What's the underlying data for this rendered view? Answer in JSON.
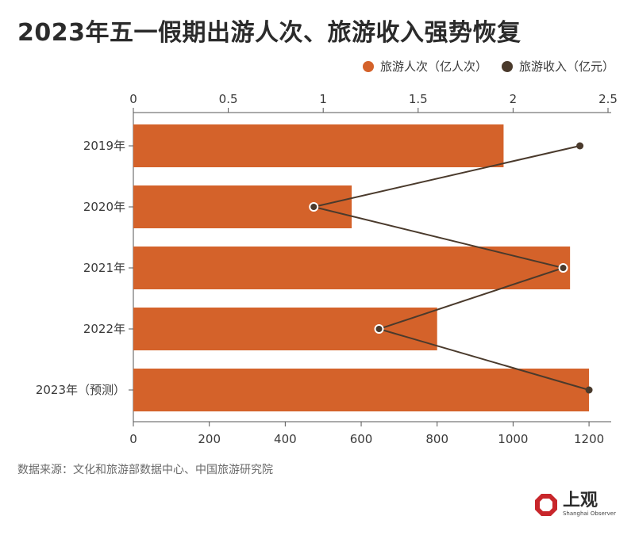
{
  "title": "2023年五一假期出游人次、旅游收入强势恢复",
  "legend": [
    {
      "label": "旅游人次（亿人次）",
      "color": "#d4622a"
    },
    {
      "label": "旅游收入（亿元）",
      "color": "#4a3a2c"
    }
  ],
  "source": "数据来源：文化和旅游部数据中心、中国旅游研究院",
  "logo": {
    "cn": "上观",
    "en": "Shanghai Observer"
  },
  "chart_data": {
    "type": "bar",
    "orientation": "horizontal",
    "categories": [
      "2019年",
      "2020年",
      "2021年",
      "2022年",
      "2023年（预测）"
    ],
    "series": [
      {
        "name": "旅游人次（亿人次）",
        "type": "bar",
        "axis": "top",
        "color": "#d4622a",
        "values": [
          1.95,
          1.15,
          2.3,
          1.6,
          2.4
        ]
      },
      {
        "name": "旅游收入（亿元）",
        "type": "line",
        "axis": "bottom",
        "color": "#4a3a2c",
        "values": [
          1176,
          475,
          1132,
          647,
          1200
        ]
      }
    ],
    "top_axis": {
      "ticks": [
        "0",
        "0.5",
        "1",
        "1.5",
        "2",
        "2.5"
      ],
      "range": [
        0,
        2.5
      ]
    },
    "bottom_axis": {
      "ticks": [
        "0",
        "200",
        "400",
        "600",
        "800",
        "1000",
        "1200"
      ],
      "range": [
        0,
        1250
      ]
    },
    "grid": false,
    "legend_position": "top-right"
  }
}
